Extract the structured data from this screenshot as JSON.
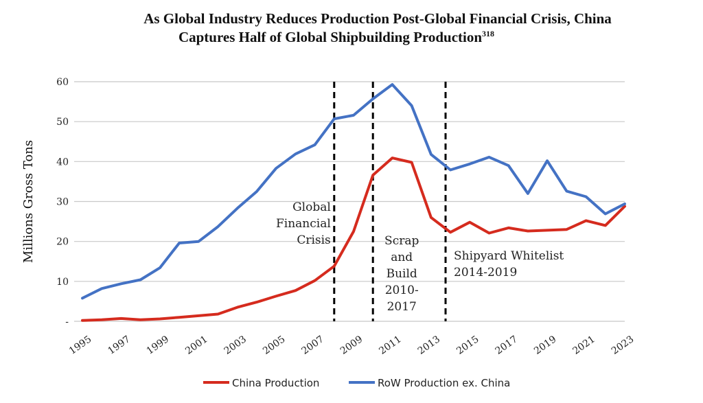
{
  "chart_data": {
    "type": "line",
    "title_line1": "As Global Industry Reduces Production Post-Global Financial Crisis, China",
    "title_line2": "Captures Half of Global Shipbuilding Production",
    "title_footnote": "318",
    "ylabel": "Millions Gross Tons",
    "xlabel": "",
    "xlim": [
      1995,
      2023
    ],
    "ylim": [
      0,
      60
    ],
    "y_ticks": [
      {
        "value": 60,
        "label": "60"
      },
      {
        "value": 50,
        "label": "50"
      },
      {
        "value": 40,
        "label": "40"
      },
      {
        "value": 30,
        "label": "30"
      },
      {
        "value": 20,
        "label": "20"
      },
      {
        "value": 10,
        "label": "10"
      },
      {
        "value": 0,
        "label": "-"
      }
    ],
    "x_ticks": [
      1995,
      1997,
      1999,
      2001,
      2003,
      2005,
      2007,
      2009,
      2011,
      2013,
      2015,
      2017,
      2019,
      2021,
      2023
    ],
    "x_tick_labels": [
      "1995",
      "1997",
      "1999",
      "2001",
      "2003",
      "2005",
      "2007",
      "2009",
      "2011",
      "2013",
      "2015",
      "2017",
      "2019",
      "2021",
      "2023"
    ],
    "grid": "horizontal",
    "legend_position": "bottom",
    "series": [
      {
        "name": "China Production",
        "color": "#d52b1e",
        "x": [
          1995,
          1996,
          1997,
          1998,
          1999,
          2000,
          2001,
          2002,
          2003,
          2004,
          2005,
          2006,
          2007,
          2008,
          2009,
          2010,
          2011,
          2012,
          2013,
          2014,
          2015,
          2016,
          2017,
          2018,
          2019,
          2020,
          2021,
          2022,
          2023
        ],
        "values": [
          0.2,
          0.4,
          0.7,
          0.4,
          0.6,
          1.0,
          1.4,
          1.8,
          3.5,
          4.8,
          6.3,
          7.7,
          10.2,
          13.8,
          22.5,
          36.6,
          40.9,
          39.8,
          26.0,
          22.3,
          24.8,
          22.1,
          23.4,
          22.6,
          22.8,
          23.0,
          25.2,
          24.0,
          28.8
        ]
      },
      {
        "name": "RoW Production ex. China",
        "color": "#4472c4",
        "x": [
          1995,
          1996,
          1997,
          1998,
          1999,
          2000,
          2001,
          2002,
          2003,
          2004,
          2005,
          2006,
          2007,
          2008,
          2009,
          2010,
          2011,
          2012,
          2013,
          2014,
          2015,
          2016,
          2017,
          2018,
          2019,
          2020,
          2021,
          2022,
          2023
        ],
        "values": [
          5.8,
          8.2,
          9.4,
          10.4,
          13.4,
          19.6,
          20.0,
          23.7,
          28.3,
          32.5,
          38.3,
          41.9,
          44.2,
          50.7,
          51.6,
          55.7,
          59.3,
          54.0,
          41.8,
          37.9,
          39.4,
          41.1,
          39.0,
          32.0,
          40.2,
          32.6,
          31.2,
          26.9,
          29.4
        ]
      }
    ],
    "annotations": [
      {
        "x": 2008.0,
        "lines": [
          "Global",
          "Financial",
          "Crisis"
        ],
        "align": "left-of-line"
      },
      {
        "x": 2010.0,
        "lines": [
          "Scrap",
          "and",
          "Build",
          "2010-",
          "2017"
        ],
        "align": "right-of-line"
      },
      {
        "x": 2013.75,
        "lines": [
          "Shipyard Whitelist",
          "2014-2019"
        ],
        "align": "right-of-line"
      }
    ],
    "legend": [
      {
        "name": "China Production",
        "color": "#d52b1e"
      },
      {
        "name": "RoW Production ex. China",
        "color": "#4472c4"
      }
    ]
  }
}
